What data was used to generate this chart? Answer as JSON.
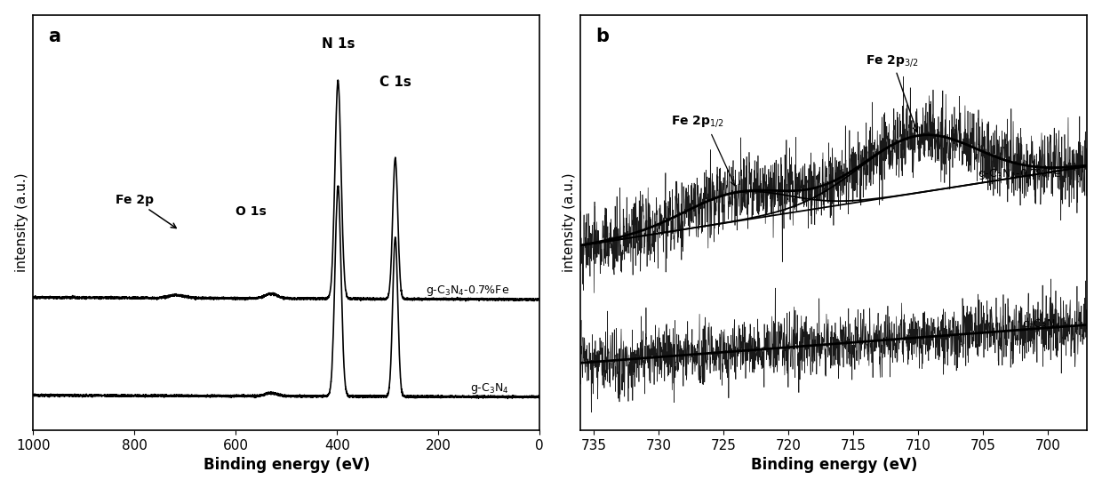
{
  "fig_width": 12.4,
  "fig_height": 5.49,
  "panel_a": {
    "xlabel": "Binding energy (eV)",
    "ylabel": "intensity (a.u.)",
    "label": "a",
    "xticks": [
      1000,
      800,
      600,
      400,
      200,
      0
    ],
    "xlim": [
      1000,
      0
    ]
  },
  "panel_b": {
    "xlabel": "Binding energy (eV)",
    "ylabel": "intensity (a.u.)",
    "label": "b",
    "xticks": [
      735,
      730,
      725,
      720,
      715,
      710,
      705,
      700
    ],
    "xlim": [
      736,
      697
    ]
  }
}
